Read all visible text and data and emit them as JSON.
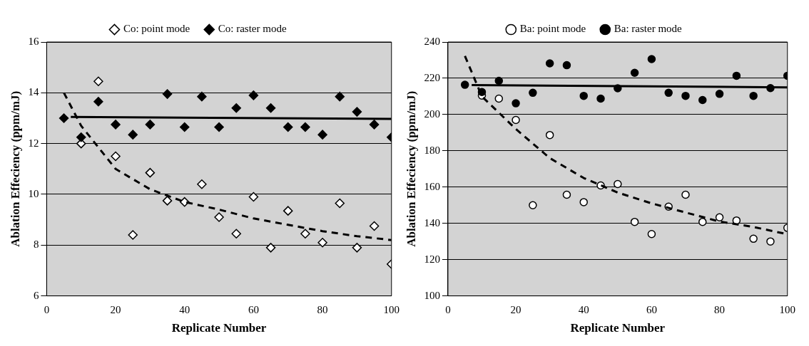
{
  "chart_data": [
    {
      "type": "scatter",
      "xlabel": "Replicate Number",
      "ylabel": "Ablation Effeciency (ppm/mJ)",
      "xlim": [
        0,
        100
      ],
      "xticks": [
        0,
        20,
        40,
        60,
        80,
        100
      ],
      "ylim": [
        6,
        16
      ],
      "yticks": [
        6,
        8,
        10,
        12,
        14,
        16
      ],
      "grid": "y",
      "legend": "top",
      "series": [
        {
          "name": "Co: point mode",
          "color": "#ffffff",
          "marker": "diamond",
          "x": [
            10,
            15,
            20,
            25,
            30,
            35,
            40,
            45,
            50,
            55,
            60,
            65,
            70,
            75,
            80,
            85,
            90,
            95,
            100
          ],
          "values": [
            12.0,
            14.45,
            11.5,
            8.4,
            10.85,
            9.75,
            9.7,
            10.4,
            9.1,
            8.45,
            9.9,
            7.9,
            9.35,
            8.45,
            8.1,
            9.65,
            7.9,
            8.75,
            7.25
          ]
        },
        {
          "name": "Co: raster mode",
          "color": "#000000",
          "marker": "diamond",
          "x": [
            5,
            10,
            15,
            20,
            25,
            30,
            35,
            40,
            45,
            50,
            55,
            60,
            65,
            70,
            75,
            80,
            85,
            90,
            95,
            100
          ],
          "values": [
            13.0,
            12.25,
            13.65,
            12.75,
            12.35,
            12.75,
            13.95,
            12.65,
            13.85,
            12.65,
            13.4,
            13.9,
            13.4,
            12.65,
            12.65,
            12.35,
            13.85,
            13.25,
            12.75,
            12.25
          ]
        },
        {
          "type": "line",
          "color": "#000000",
          "marker": "none",
          "line_style": "solid",
          "x": [
            7,
            100
          ],
          "values": [
            13.05,
            12.97
          ]
        },
        {
          "type": "line",
          "color": "#000000",
          "marker": "none",
          "line_style": "dashed",
          "x": [
            5,
            10,
            20,
            30,
            40,
            50,
            60,
            70,
            80,
            90,
            100
          ],
          "values": [
            14.0,
            12.7,
            11.0,
            10.2,
            9.7,
            9.4,
            9.05,
            8.8,
            8.55,
            8.35,
            8.2
          ]
        }
      ]
    },
    {
      "type": "scatter",
      "xlabel": "Replicate Number",
      "ylabel": "Ablation Effeciency (ppm/mJ)",
      "xlim": [
        0,
        100
      ],
      "xticks": [
        0,
        20,
        40,
        60,
        80,
        100
      ],
      "ylim": [
        100,
        240
      ],
      "yticks": [
        100,
        120,
        140,
        160,
        180,
        200,
        220,
        240
      ],
      "grid": "y",
      "legend": "top",
      "series": [
        {
          "name": "Ba: point mode",
          "color": "#ffffff",
          "marker": "circle",
          "x": [
            10,
            15,
            20,
            25,
            30,
            35,
            40,
            45,
            50,
            55,
            60,
            65,
            70,
            75,
            80,
            85,
            90,
            95,
            100
          ],
          "values": [
            210.5,
            208.8,
            197,
            150,
            188.7,
            155.8,
            151.7,
            160.9,
            161.7,
            140.8,
            134.1,
            149.2,
            155.8,
            140.8,
            143.3,
            141.6,
            131.5,
            130,
            137.5
          ]
        },
        {
          "name": "Ba: raster mode",
          "color": "#000000",
          "marker": "circle",
          "x": [
            5,
            10,
            15,
            20,
            25,
            30,
            35,
            40,
            45,
            50,
            55,
            60,
            65,
            70,
            75,
            80,
            85,
            90,
            95,
            100
          ],
          "values": [
            216.4,
            212.4,
            218.6,
            206.2,
            212,
            228.2,
            227.2,
            210.3,
            208.8,
            214.5,
            223,
            230.6,
            212,
            210.3,
            208,
            211.4,
            221.4,
            210.3,
            214.6,
            221.4
          ]
        },
        {
          "type": "line",
          "color": "#000000",
          "marker": "none",
          "line_style": "solid",
          "x": [
            7,
            100
          ],
          "values": [
            216.2,
            215
          ]
        },
        {
          "type": "line",
          "color": "#000000",
          "marker": "none",
          "line_style": "dashed",
          "x": [
            5,
            10,
            20,
            30,
            40,
            50,
            60,
            70,
            80,
            90,
            100
          ],
          "values": [
            232.3,
            210,
            192,
            176,
            165,
            157,
            151,
            146,
            141,
            138,
            134
          ]
        }
      ]
    }
  ]
}
